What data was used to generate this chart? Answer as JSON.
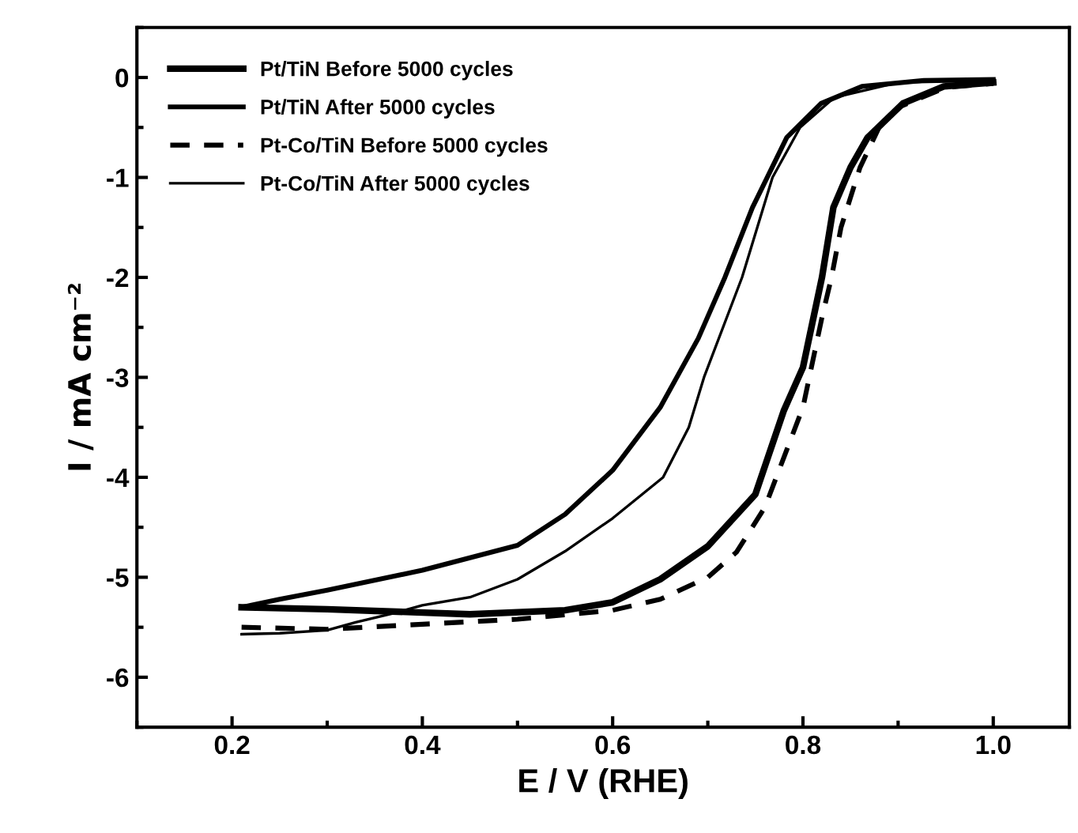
{
  "chart_data": {
    "type": "line",
    "xlabel": "E / V (RHE)",
    "ylabel": "I / mA cm⁻²",
    "xlim": [
      0.1,
      1.08
    ],
    "ylim": [
      -6.5,
      0.5
    ],
    "xticks": [
      0.2,
      0.4,
      0.6,
      0.8,
      {
        "value": 1.0,
        "label": "1.0"
      }
    ],
    "yticks": [
      0,
      -1,
      -2,
      -3,
      -4,
      -5,
      -6
    ],
    "grid": false,
    "legend": "top left",
    "marker": "none",
    "series": [
      {
        "name": "Pt/TiN Before 5000 cycles",
        "color": "#000000",
        "line_style": "solid",
        "x": [
          0.21,
          0.3,
          0.45,
          0.55,
          0.6,
          0.65,
          0.7,
          0.75,
          0.78,
          0.8,
          0.82,
          0.832,
          0.85,
          0.868,
          0.905,
          0.948,
          1.0
        ],
        "values": [
          -5.3,
          -5.32,
          -5.37,
          -5.33,
          -5.25,
          -5.02,
          -4.69,
          -4.17,
          -3.33,
          -2.9,
          -2.0,
          -1.3,
          -0.9,
          -0.6,
          -0.26,
          -0.09,
          -0.05
        ]
      },
      {
        "name": "Pt/TiN After 5000 cycles",
        "color": "#000000",
        "line_style": "solid",
        "x": [
          0.21,
          0.25,
          0.3,
          0.4,
          0.5,
          0.55,
          0.6,
          0.65,
          0.69,
          0.718,
          0.747,
          0.783,
          0.819,
          0.862,
          0.927,
          1.0
        ],
        "values": [
          -5.3,
          -5.22,
          -5.13,
          -4.93,
          -4.68,
          -4.37,
          -3.93,
          -3.3,
          -2.61,
          -2.0,
          -1.3,
          -0.6,
          -0.26,
          -0.09,
          -0.03,
          -0.02
        ]
      },
      {
        "name": "Pt-Co/TiN Before 5000 cycles",
        "color": "#000000",
        "line_style": "dashed",
        "x": [
          0.21,
          0.3,
          0.4,
          0.5,
          0.6,
          0.65,
          0.7,
          0.73,
          0.76,
          0.78,
          0.8,
          0.82,
          0.83,
          0.84,
          0.86,
          0.88,
          0.9,
          0.95,
          1.0
        ],
        "values": [
          -5.5,
          -5.52,
          -5.47,
          -5.42,
          -5.33,
          -5.22,
          -5.0,
          -4.75,
          -4.3,
          -3.8,
          -3.3,
          -2.4,
          -2.0,
          -1.5,
          -0.9,
          -0.5,
          -0.3,
          -0.1,
          -0.06
        ]
      },
      {
        "name": "Pt-Co/TiN After 5000 cycles",
        "color": "#000000",
        "line_style": "solid",
        "x": [
          0.21,
          0.25,
          0.3,
          0.33,
          0.37,
          0.4,
          0.45,
          0.5,
          0.55,
          0.6,
          0.653,
          0.68,
          0.696,
          0.736,
          0.768,
          0.797,
          0.833,
          0.9,
          1.0
        ],
        "values": [
          -5.57,
          -5.56,
          -5.53,
          -5.45,
          -5.36,
          -5.28,
          -5.2,
          -5.02,
          -4.74,
          -4.41,
          -4.0,
          -3.5,
          -3.0,
          -2.0,
          -1.0,
          -0.5,
          -0.2,
          -0.05,
          -0.03
        ]
      }
    ]
  }
}
